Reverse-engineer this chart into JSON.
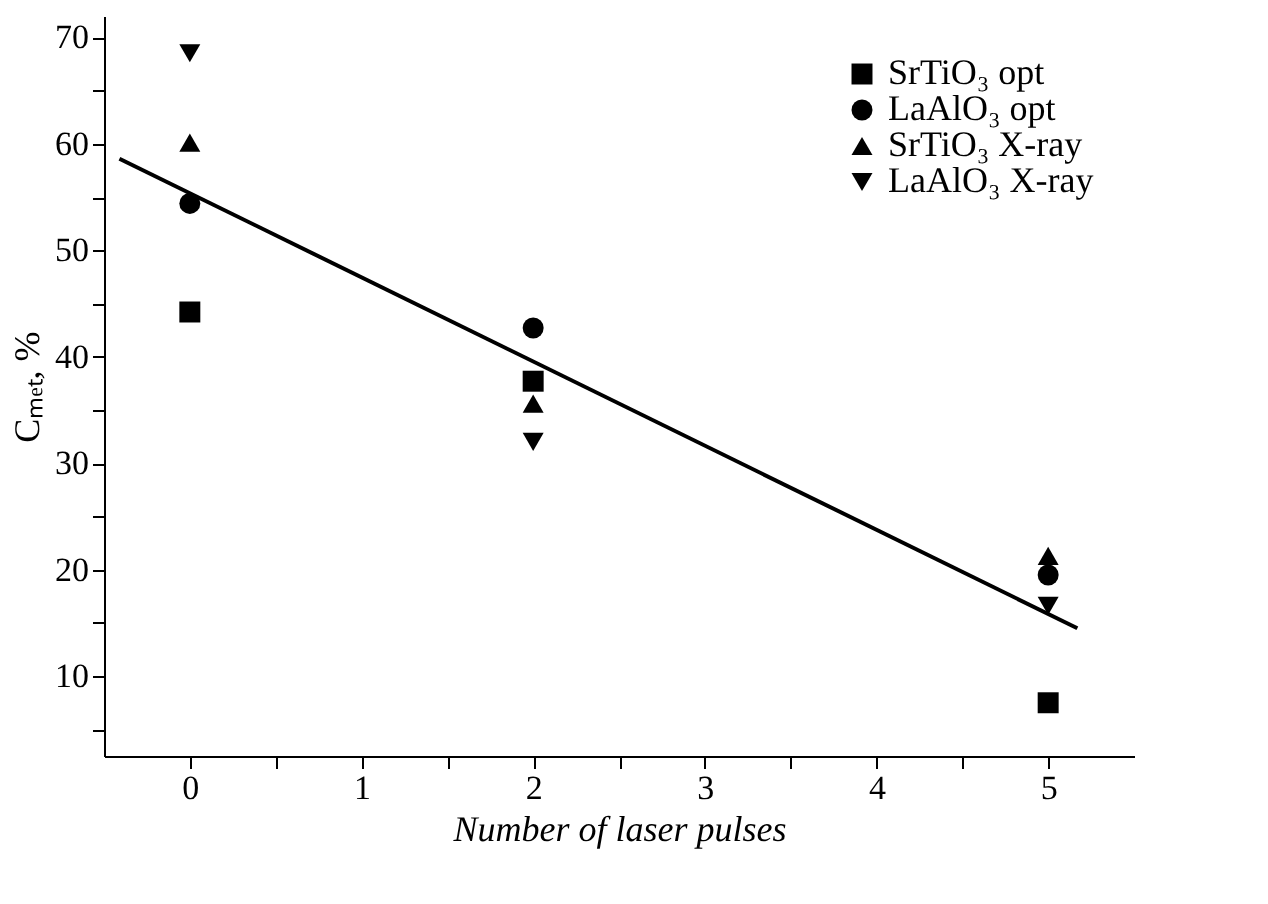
{
  "chart_data": {
    "type": "scatter",
    "xlabel": "Number of laser pulses",
    "ylabel": "Cₘₑₜ, %",
    "xlim": [
      -0.5,
      5.5
    ],
    "ylim": [
      2.5,
      72
    ],
    "xticks": [
      0,
      {
        "value": 0.5,
        "label": null
      },
      1,
      {
        "value": 1.5,
        "label": null
      },
      2,
      {
        "value": 2.5,
        "label": null
      },
      3,
      {
        "value": 3.5,
        "label": null
      },
      4,
      {
        "value": 4.5,
        "label": null
      },
      5
    ],
    "yticks": [
      {
        "value": 5,
        "label": null
      },
      10,
      {
        "value": 15,
        "label": null
      },
      20,
      {
        "value": 25,
        "label": null
      },
      30,
      {
        "value": 35,
        "label": null
      },
      40,
      {
        "value": 45,
        "label": null
      },
      50,
      {
        "value": 55,
        "label": null
      },
      60,
      {
        "value": 65,
        "label": null
      },
      70
    ],
    "x": [
      0,
      2,
      5
    ],
    "grid": false,
    "legend": "top right",
    "series": [
      {
        "name": "SrTiO₃ opt",
        "color": "#000000",
        "marker": "square",
        "values": [
          44.2,
          37.7,
          7.5
        ]
      },
      {
        "name": "LaAlO₃ opt",
        "color": "#000000",
        "marker": "circle",
        "values": [
          54.4,
          42.7,
          19.5
        ]
      },
      {
        "name": "SrTiO₃ X-ray",
        "color": "#000000",
        "marker": "triangle",
        "values": [
          60.1,
          35.6,
          21.3
        ]
      },
      {
        "name": "LaAlO₃ X-ray",
        "color": "#000000",
        "marker": "triangle-down",
        "values": [
          68.5,
          32.0,
          16.6
        ]
      },
      {
        "type": "line",
        "color": "#000000",
        "marker": "none",
        "line_style": "solid",
        "x": [
          -0.41,
          5.17
        ],
        "values": [
          58.6,
          14.5
        ]
      }
    ]
  }
}
